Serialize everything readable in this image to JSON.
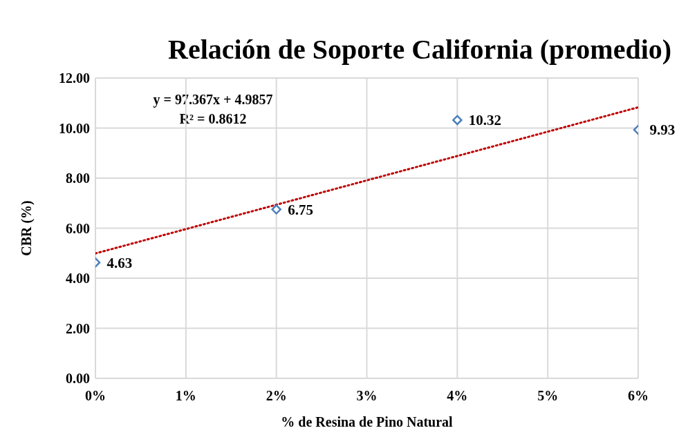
{
  "chart_data": {
    "type": "scatter",
    "title": "Relación de Soporte California (promedio)",
    "xlabel": "% de Resina de Pino Natural",
    "ylabel": "CBR (%)",
    "annotations": [
      "y = 97.367x + 4.9857",
      "R² = 0.8612"
    ],
    "xlim": [
      0,
      0.06
    ],
    "xticks": [
      {
        "value": 0,
        "label": "0%"
      },
      {
        "value": 0.01,
        "label": "1%"
      },
      {
        "value": 0.02,
        "label": "2%"
      },
      {
        "value": 0.03,
        "label": "3%"
      },
      {
        "value": 0.04,
        "label": "4%"
      },
      {
        "value": 0.05,
        "label": "5%"
      },
      {
        "value": 0.06,
        "label": "6%"
      }
    ],
    "ylim": [
      0,
      12
    ],
    "yticks": [
      {
        "value": 0,
        "label": "0.00"
      },
      {
        "value": 2,
        "label": "2.00"
      },
      {
        "value": 4,
        "label": "4.00"
      },
      {
        "value": 6,
        "label": "6.00"
      },
      {
        "value": 8,
        "label": "8.00"
      },
      {
        "value": 10,
        "label": "10.00"
      },
      {
        "value": 12,
        "label": "12.00"
      }
    ],
    "grid": true,
    "legend": false,
    "series": [
      {
        "color": "#4a7ebb",
        "marker": "diamond",
        "x": [
          0,
          0.02,
          0.04,
          0.06
        ],
        "values": [
          4.63,
          6.75,
          10.32,
          9.93
        ],
        "value_labels": [
          "4.63",
          "6.75",
          "10.32",
          "9.93"
        ]
      },
      {
        "type": "line",
        "color": "#c00000",
        "line_style": "dotted",
        "marker": "none",
        "x": [
          0,
          0.06
        ],
        "values": [
          4.99,
          10.83
        ]
      }
    ]
  }
}
